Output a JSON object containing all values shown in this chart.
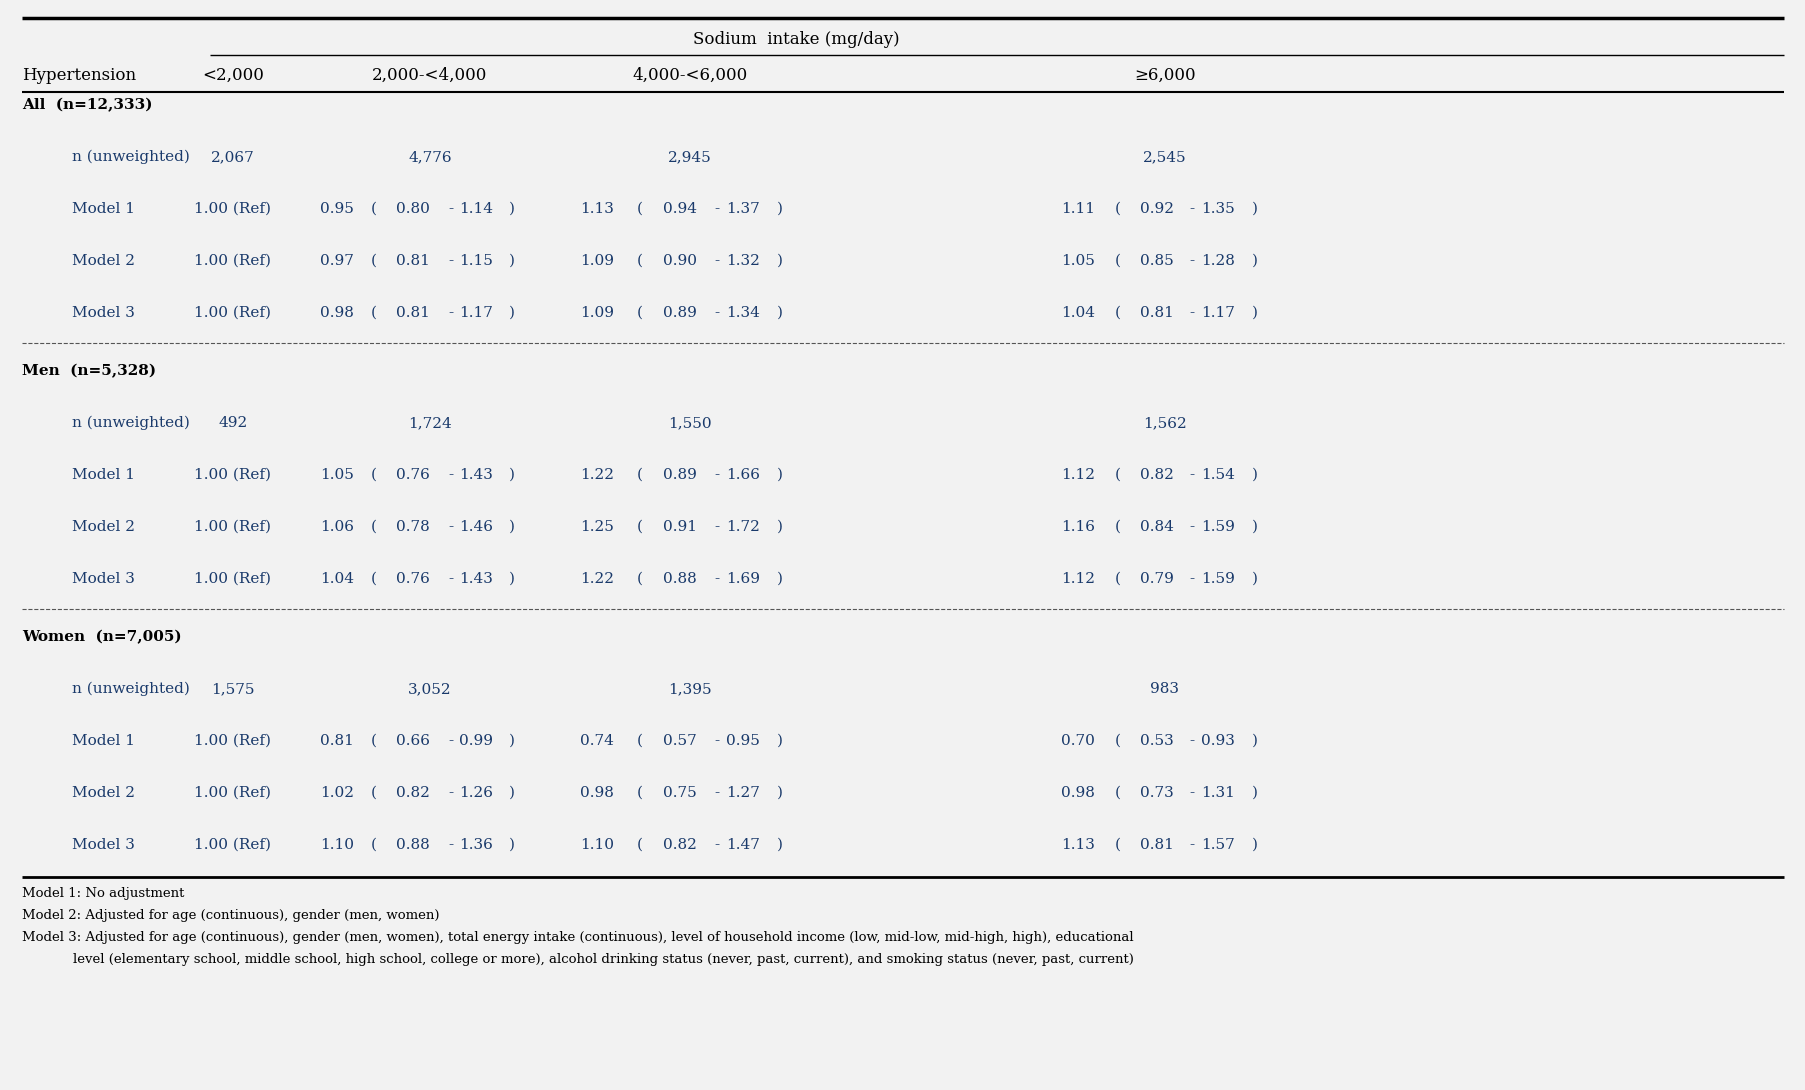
{
  "title": "Sodium  intake (mg/day)",
  "col_header_row1": "Hypertension",
  "col_headers": [
    "<2,000",
    "2,000-<4,000",
    "4,000-<6,000",
    "≥6,000"
  ],
  "background_color": "#f2f2f2",
  "sections": [
    {
      "title": "All  (n=12,333)",
      "n_label": "n (unweighted)",
      "n_values": [
        "2,067",
        "4,776",
        "2,945",
        "2,545"
      ],
      "models": [
        {
          "name": "Model 1",
          "col1": "1.00 (Ref)",
          "col2_or": "0.95",
          "col2_lo": "0.80",
          "col2_hi": "1.14",
          "col3_or": "1.13",
          "col3_lo": "0.94",
          "col3_hi": "1.37",
          "col4_or": "1.11",
          "col4_lo": "0.92",
          "col4_hi": "1.35"
        },
        {
          "name": "Model 2",
          "col1": "1.00 (Ref)",
          "col2_or": "0.97",
          "col2_lo": "0.81",
          "col2_hi": "1.15",
          "col3_or": "1.09",
          "col3_lo": "0.90",
          "col3_hi": "1.32",
          "col4_or": "1.05",
          "col4_lo": "0.85",
          "col4_hi": "1.28"
        },
        {
          "name": "Model 3",
          "col1": "1.00 (Ref)",
          "col2_or": "0.98",
          "col2_lo": "0.81",
          "col2_hi": "1.17",
          "col3_or": "1.09",
          "col3_lo": "0.89",
          "col3_hi": "1.34",
          "col4_or": "1.04",
          "col4_lo": "0.81",
          "col4_hi": "1.17"
        }
      ]
    },
    {
      "title": "Men  (n=5,328)",
      "n_label": "n (unweighted)",
      "n_values": [
        "492",
        "1,724",
        "1,550",
        "1,562"
      ],
      "models": [
        {
          "name": "Model 1",
          "col1": "1.00 (Ref)",
          "col2_or": "1.05",
          "col2_lo": "0.76",
          "col2_hi": "1.43",
          "col3_or": "1.22",
          "col3_lo": "0.89",
          "col3_hi": "1.66",
          "col4_or": "1.12",
          "col4_lo": "0.82",
          "col4_hi": "1.54"
        },
        {
          "name": "Model 2",
          "col1": "1.00 (Ref)",
          "col2_or": "1.06",
          "col2_lo": "0.78",
          "col2_hi": "1.46",
          "col3_or": "1.25",
          "col3_lo": "0.91",
          "col3_hi": "1.72",
          "col4_or": "1.16",
          "col4_lo": "0.84",
          "col4_hi": "1.59"
        },
        {
          "name": "Model 3",
          "col1": "1.00 (Ref)",
          "col2_or": "1.04",
          "col2_lo": "0.76",
          "col2_hi": "1.43",
          "col3_or": "1.22",
          "col3_lo": "0.88",
          "col3_hi": "1.69",
          "col4_or": "1.12",
          "col4_lo": "0.79",
          "col4_hi": "1.59"
        }
      ]
    },
    {
      "title": "Women  (n=7,005)",
      "n_label": "n (unweighted)",
      "n_values": [
        "1,575",
        "3,052",
        "1,395",
        "983"
      ],
      "models": [
        {
          "name": "Model 1",
          "col1": "1.00 (Ref)",
          "col2_or": "0.81",
          "col2_lo": "0.66",
          "col2_hi": "0.99",
          "col3_or": "0.74",
          "col3_lo": "0.57",
          "col3_hi": "0.95",
          "col4_or": "0.70",
          "col4_lo": "0.53",
          "col4_hi": "0.93"
        },
        {
          "name": "Model 2",
          "col1": "1.00 (Ref)",
          "col2_or": "1.02",
          "col2_lo": "0.82",
          "col2_hi": "1.26",
          "col3_or": "0.98",
          "col3_lo": "0.75",
          "col3_hi": "1.27",
          "col4_or": "0.98",
          "col4_lo": "0.73",
          "col4_hi": "1.31"
        },
        {
          "name": "Model 3",
          "col1": "1.00 (Ref)",
          "col2_or": "1.10",
          "col2_lo": "0.88",
          "col2_hi": "1.36",
          "col3_or": "1.10",
          "col3_lo": "0.82",
          "col3_hi": "1.47",
          "col4_or": "1.13",
          "col4_lo": "0.81",
          "col4_hi": "1.57"
        }
      ]
    }
  ],
  "footnotes": [
    "Model 1: No adjustment",
    "Model 2: Adjusted for age (continuous), gender (men, women)",
    "Model 3: Adjusted for age (continuous), gender (men, women), total energy intake (continuous), level of household income (low, mid-low, mid-high, high), educational",
    "            level (elementary school, middle school, high school, college or more), alcohol drinking status (never, past, current), and smoking status (never, past, current)"
  ],
  "text_color": "#1a3a6b",
  "font_size_header": 12,
  "font_size_body": 11,
  "font_size_footnote": 9.5
}
